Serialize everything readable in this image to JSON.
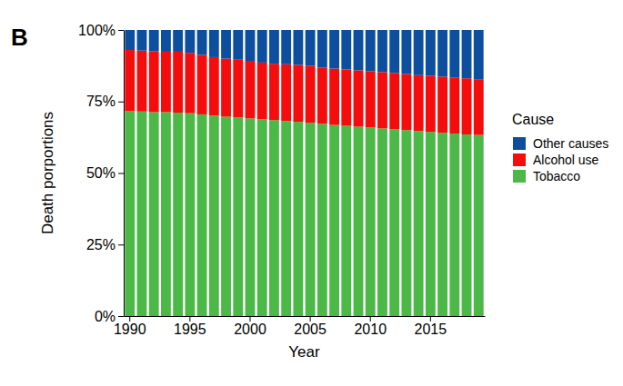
{
  "chart_data": {
    "type": "bar",
    "stacked": true,
    "annotations": [
      "B"
    ],
    "x_label": "Year",
    "y_label": "Death porportions",
    "legend_title": "Cause",
    "legend": "right",
    "categories": [
      "1990",
      null,
      null,
      null,
      null,
      "1995",
      null,
      null,
      null,
      null,
      "2000",
      null,
      null,
      null,
      null,
      "2005",
      null,
      null,
      null,
      null,
      "2010",
      null,
      null,
      null,
      null,
      "2015",
      null,
      null,
      null,
      null
    ],
    "series": [
      {
        "name": "Other causes",
        "color": "#0d4f9e",
        "values": [
          7.0,
          7.2,
          7.5,
          7.6,
          7.6,
          8.0,
          8.7,
          9.5,
          10.0,
          10.4,
          10.8,
          11.4,
          11.8,
          12.0,
          12.2,
          12.5,
          13.2,
          13.5,
          13.8,
          14.1,
          14.4,
          14.7,
          15.0,
          15.4,
          15.8,
          16.0,
          16.3,
          16.6,
          16.9,
          17.2
        ]
      },
      {
        "name": "Alcohol use",
        "color": "#f50c0c",
        "values": [
          21.4,
          21.3,
          21.2,
          21.1,
          21.3,
          21.1,
          20.8,
          20.4,
          20.3,
          20.2,
          20.1,
          19.8,
          19.7,
          19.8,
          19.9,
          19.9,
          19.6,
          19.7,
          19.7,
          19.7,
          19.7,
          19.7,
          19.7,
          19.6,
          19.5,
          19.6,
          19.6,
          19.6,
          19.6,
          19.5
        ]
      },
      {
        "name": "Tobacco",
        "color": "#4cb848",
        "values": [
          71.6,
          71.5,
          71.3,
          71.3,
          71.1,
          70.9,
          70.5,
          70.1,
          69.7,
          69.4,
          69.1,
          68.8,
          68.5,
          68.2,
          67.9,
          67.6,
          67.2,
          66.8,
          66.5,
          66.2,
          65.9,
          65.6,
          65.3,
          65.0,
          64.7,
          64.4,
          64.1,
          63.8,
          63.5,
          63.3
        ]
      }
    ],
    "ylim": [
      0,
      100
    ],
    "yticks": [
      {
        "value": 0,
        "label": "0%"
      },
      {
        "value": 25,
        "label": "25%"
      },
      {
        "value": 50,
        "label": "50%"
      },
      {
        "value": 75,
        "label": "75%"
      },
      {
        "value": 100,
        "label": "100%"
      }
    ]
  }
}
